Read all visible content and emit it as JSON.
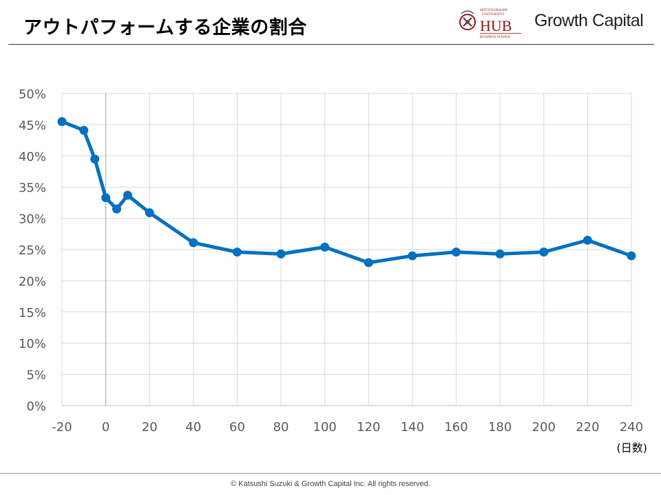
{
  "header": {
    "title": "アウトパフォームする企業の割合"
  },
  "logos": {
    "hub": {
      "line1": "HITOTSUBASHI",
      "line2": "UNIVERSITY",
      "name": "HUB",
      "school": "BUSINESS SCHOOL",
      "accent": "#8b1a1a"
    },
    "growth_capital": "Growth Capital"
  },
  "chart_data": {
    "type": "line",
    "title": "",
    "xlabel": "(日数)",
    "ylabel": "",
    "x": [
      -20,
      -10,
      -5,
      0,
      5,
      10,
      20,
      40,
      60,
      80,
      100,
      120,
      140,
      160,
      180,
      200,
      220,
      240
    ],
    "series": [
      {
        "name": "アウトパフォームする企業の割合",
        "color": "#0070c0",
        "values": [
          45.5,
          44.1,
          39.5,
          33.3,
          31.5,
          33.7,
          30.9,
          26.1,
          24.6,
          24.3,
          25.4,
          22.9,
          24.0,
          24.6,
          24.3,
          24.6,
          26.5,
          24.0
        ]
      }
    ],
    "xlim": [
      -20,
      240
    ],
    "ylim": [
      0,
      50
    ],
    "x_ticks": [
      -20,
      0,
      20,
      40,
      60,
      80,
      100,
      120,
      140,
      160,
      180,
      200,
      220,
      240
    ],
    "x_tick_labels": [
      "-20",
      "0",
      "20",
      "40",
      "60",
      "80",
      "100",
      "120",
      "140",
      "160",
      "180",
      "200",
      "220",
      "240"
    ],
    "y_ticks": [
      0,
      5,
      10,
      15,
      20,
      25,
      30,
      35,
      40,
      45,
      50
    ],
    "y_tick_labels": [
      "0%",
      "5%",
      "10%",
      "15%",
      "20%",
      "25%",
      "30%",
      "35%",
      "40%",
      "45%",
      "50%"
    ],
    "grid": true,
    "legend": "none"
  },
  "footer": {
    "copyright": "© Katsushi Suzuki & Growth Capital Inc. All rights reserved."
  }
}
